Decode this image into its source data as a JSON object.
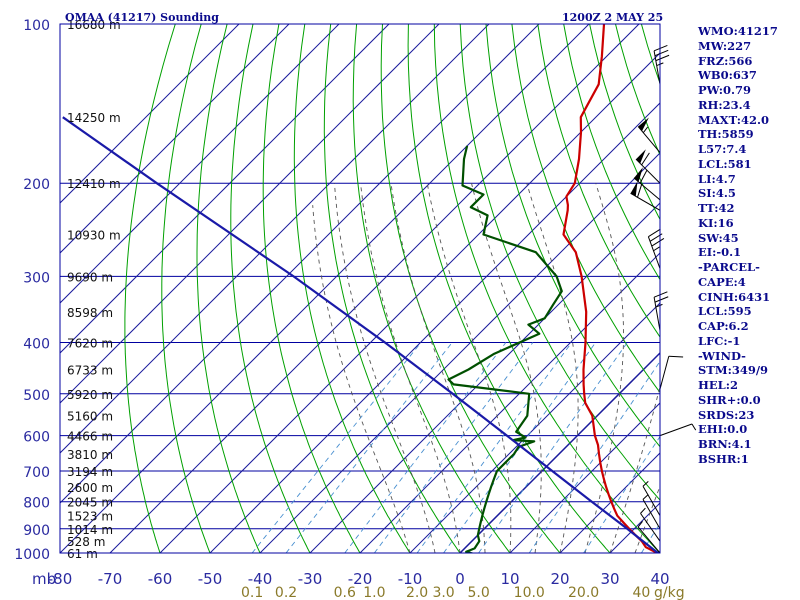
{
  "title_left": "OMAA (41217) Sounding",
  "title_right": "1200Z  2 MAY 25",
  "indices": [
    "WMO:41217",
    "MW:227",
    "FRZ:566",
    "WB0:637",
    "PW:0.79",
    "RH:23.4",
    "MAXT:42.0",
    "TH:5859",
    "L57:7.4",
    "LCL:581",
    "LI:4.7",
    "SI:4.5",
    "TT:42",
    "KI:16",
    "SW:45",
    "EI:-0.1",
    "-PARCEL-",
    "CAPE:4",
    "CINH:6431",
    "LCL:595",
    "CAP:6.2",
    "LFC:-1",
    "-WIND-",
    "STM:349/9",
    "HEL:2",
    "SHR+:0.0",
    "SRDS:23",
    "EHI:0.0",
    "BRN:4.1",
    "BSHR:1"
  ],
  "colors": {
    "frame": "#0000a0",
    "isotherm": "#1a1a9c",
    "dry_adiabat": "#00a000",
    "moist_adiabat": "#555555",
    "mixing_ratio": "#4a90d0",
    "temperature": "#cc0000",
    "dewpoint": "#005000",
    "parcel": "#1a1aa8",
    "height_text": "#111111",
    "wind_barb": "#000000"
  },
  "chart_data": {
    "type": "line",
    "title": "OMAA (41217) Sounding",
    "pressure_axis": {
      "unit": "mb",
      "levels": [
        100,
        200,
        300,
        400,
        500,
        600,
        700,
        800,
        900,
        1000
      ],
      "tick_labels": [
        "100",
        "200",
        "300",
        "400",
        "500",
        "600",
        "700",
        "800",
        "900",
        "1000"
      ]
    },
    "temperature_axis": {
      "unit": "°C",
      "values": [
        -80,
        -70,
        -60,
        -50,
        -40,
        -30,
        -20,
        -10,
        0,
        10,
        20,
        30,
        40
      ],
      "tick_labels": [
        "-80",
        "-70",
        "-60",
        "-50",
        "-40",
        "-30",
        "-20",
        "-10",
        "0",
        "10",
        "20",
        "30",
        "40"
      ]
    },
    "unit_label_mb": "mb",
    "unit_label_gkg": "g/kg",
    "mixing_ratio_labels": [
      {
        "value": 0.1,
        "label": "0.1"
      },
      {
        "value": 0.2,
        "label": "0.2"
      },
      {
        "value": 0.6,
        "label": "0.6"
      },
      {
        "value": 1.0,
        "label": "1.0"
      },
      {
        "value": 2.0,
        "label": "2.0"
      },
      {
        "value": 3.0,
        "label": "3.0"
      },
      {
        "value": 5.0,
        "label": "5.0"
      },
      {
        "value": 10.0,
        "label": "10.0"
      },
      {
        "value": 20.0,
        "label": "20.0"
      },
      {
        "value": 40.0,
        "label": "40"
      }
    ],
    "height_labels": [
      {
        "p": 100,
        "label": "16680 m"
      },
      {
        "p": 150,
        "label": "14250 m"
      },
      {
        "p": 200,
        "label": "12410 m"
      },
      {
        "p": 250,
        "label": "10930 m"
      },
      {
        "p": 300,
        "label": "9690 m"
      },
      {
        "p": 350,
        "label": "8598 m"
      },
      {
        "p": 400,
        "label": "7620 m"
      },
      {
        "p": 450,
        "label": "6733 m"
      },
      {
        "p": 500,
        "label": "5920 m"
      },
      {
        "p": 550,
        "label": "5160 m"
      },
      {
        "p": 600,
        "label": "4466 m"
      },
      {
        "p": 650,
        "label": "3810 m"
      },
      {
        "p": 700,
        "label": "3194 m"
      },
      {
        "p": 750,
        "label": "2600 m"
      },
      {
        "p": 800,
        "label": "2045 m"
      },
      {
        "p": 850,
        "label": "1523 m"
      },
      {
        "p": 900,
        "label": "1014 m"
      },
      {
        "p": 950,
        "label": "528 m"
      },
      {
        "p": 1000,
        "label": "61 m"
      }
    ],
    "series": [
      {
        "key": "temperature",
        "points": [
          [
            1004,
            40
          ],
          [
            975,
            36
          ],
          [
            950,
            34
          ],
          [
            925,
            31.5
          ],
          [
            900,
            29
          ],
          [
            875,
            26.5
          ],
          [
            850,
            24
          ],
          [
            825,
            22
          ],
          [
            800,
            20
          ],
          [
            775,
            18
          ],
          [
            750,
            16
          ],
          [
            725,
            14
          ],
          [
            700,
            12
          ],
          [
            675,
            10
          ],
          [
            650,
            8
          ],
          [
            625,
            6
          ],
          [
            600,
            3.5
          ],
          [
            550,
            -1
          ],
          [
            520,
            -5
          ],
          [
            500,
            -7
          ],
          [
            480,
            -9
          ],
          [
            450,
            -12
          ],
          [
            400,
            -17
          ],
          [
            350,
            -23
          ],
          [
            300,
            -31
          ],
          [
            270,
            -37
          ],
          [
            250,
            -43
          ],
          [
            225,
            -47
          ],
          [
            220,
            -48
          ],
          [
            212,
            -50
          ],
          [
            200,
            -51
          ],
          [
            180,
            -55
          ],
          [
            160,
            -60
          ],
          [
            150,
            -63
          ],
          [
            130,
            -66
          ],
          [
            115,
            -71
          ],
          [
            100,
            -77
          ]
        ]
      },
      {
        "key": "dewpoint",
        "points": [
          [
            1004,
            3
          ],
          [
            995,
            1
          ],
          [
            980,
            2
          ],
          [
            950,
            1.5
          ],
          [
            925,
            0
          ],
          [
            900,
            -1
          ],
          [
            875,
            -2
          ],
          [
            850,
            -3
          ],
          [
            825,
            -4
          ],
          [
            800,
            -5
          ],
          [
            775,
            -6
          ],
          [
            750,
            -7
          ],
          [
            725,
            -8
          ],
          [
            700,
            -9
          ],
          [
            675,
            -9
          ],
          [
            650,
            -9
          ],
          [
            630,
            -9.5
          ],
          [
            615,
            -7.5
          ],
          [
            612,
            -12
          ],
          [
            605,
            -10
          ],
          [
            600,
            -11
          ],
          [
            590,
            -13
          ],
          [
            550,
            -14
          ],
          [
            500,
            -18
          ],
          [
            480,
            -35
          ],
          [
            470,
            -37
          ],
          [
            450,
            -35
          ],
          [
            420,
            -33
          ],
          [
            385,
            -28
          ],
          [
            370,
            -32
          ],
          [
            360,
            -30
          ],
          [
            340,
            -31
          ],
          [
            320,
            -32
          ],
          [
            300,
            -36
          ],
          [
            270,
            -45
          ],
          [
            250,
            -59
          ],
          [
            230,
            -62
          ],
          [
            222,
            -67
          ],
          [
            210,
            -67
          ],
          [
            202,
            -73
          ],
          [
            180,
            -78
          ],
          [
            170,
            -80
          ]
        ]
      },
      {
        "key": "parcel",
        "points": [
          [
            1004,
            40
          ],
          [
            900,
            28.6
          ],
          [
            800,
            16.1
          ],
          [
            700,
            2.1
          ],
          [
            600,
            -14.1
          ],
          [
            500,
            -33.3
          ],
          [
            400,
            -57.1
          ],
          [
            300,
            -88.6
          ],
          [
            200,
            -134.6
          ],
          [
            150,
            -166.6
          ]
        ]
      }
    ],
    "wind_barbs": [
      {
        "p": 130,
        "dir": 350,
        "spd": 35
      },
      {
        "p": 175,
        "dir": 320,
        "spd": 55
      },
      {
        "p": 200,
        "dir": 315,
        "spd": 60
      },
      {
        "p": 215,
        "dir": 310,
        "spd": 60
      },
      {
        "p": 225,
        "dir": 300,
        "spd": 60
      },
      {
        "p": 290,
        "dir": 340,
        "spd": 35
      },
      {
        "p": 380,
        "dir": 350,
        "spd": 25
      },
      {
        "p": 490,
        "dir": 15,
        "spd": 10
      },
      {
        "p": 600,
        "dir": 70,
        "spd": 5
      },
      {
        "p": 850,
        "dir": 330,
        "spd": 5
      },
      {
        "p": 900,
        "dir": 330,
        "spd": 5
      },
      {
        "p": 950,
        "dir": 325,
        "spd": 5
      },
      {
        "p": 1000,
        "dir": 320,
        "spd": 5
      }
    ]
  }
}
